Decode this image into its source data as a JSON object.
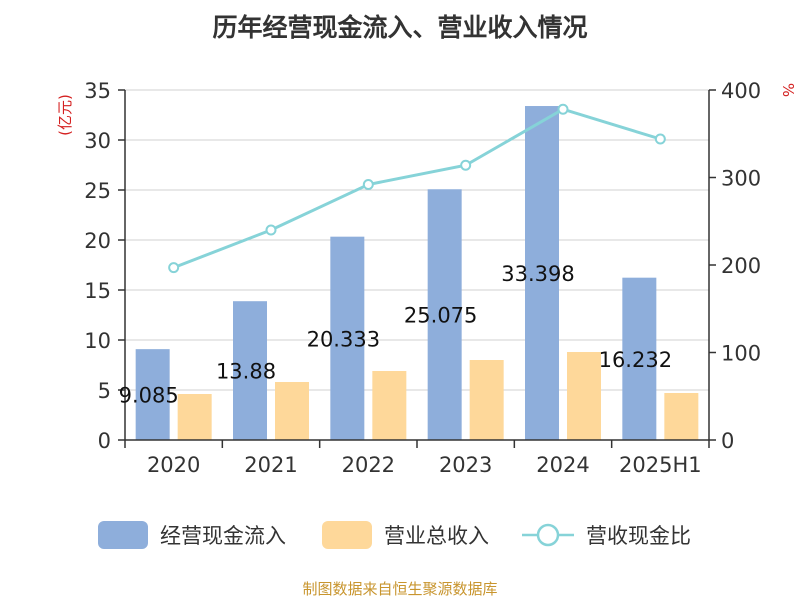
{
  "chart_data": {
    "type": "bar",
    "title": "历年经营现金流入、营业收入情况",
    "left_axis_unit": "(亿元)",
    "right_axis_unit": "%",
    "categories": [
      "2020",
      "2021",
      "2022",
      "2023",
      "2024",
      "2025H1"
    ],
    "y_left": {
      "min": 0,
      "max": 35,
      "ticks": [
        "0",
        "5",
        "10",
        "15",
        "20",
        "25",
        "30",
        "35"
      ]
    },
    "y_right": {
      "min": 0,
      "max": 400,
      "ticks": [
        "0",
        "100",
        "200",
        "300",
        "400"
      ]
    },
    "grid": true,
    "legend_position": "bottom",
    "series": [
      {
        "name": "经营现金流入",
        "kind": "bar",
        "axis": "left",
        "color": "#8eaedb",
        "values": [
          9.085,
          13.88,
          20.333,
          25.075,
          33.398,
          16.232
        ],
        "labels": [
          "9.085",
          "13.88",
          "20.333",
          "25.075",
          "33.398",
          "16.232"
        ]
      },
      {
        "name": "营业总收入",
        "kind": "bar",
        "axis": "left",
        "color": "#fed89a",
        "values": [
          4.6,
          5.8,
          6.9,
          8.0,
          8.8,
          4.7
        ]
      },
      {
        "name": "营收现金比",
        "kind": "line",
        "axis": "right",
        "color": "#86d3d8",
        "values": [
          197,
          240,
          292,
          314,
          378,
          344
        ]
      }
    ]
  },
  "footer": {
    "source": "制图数据来自恒生聚源数据库"
  }
}
